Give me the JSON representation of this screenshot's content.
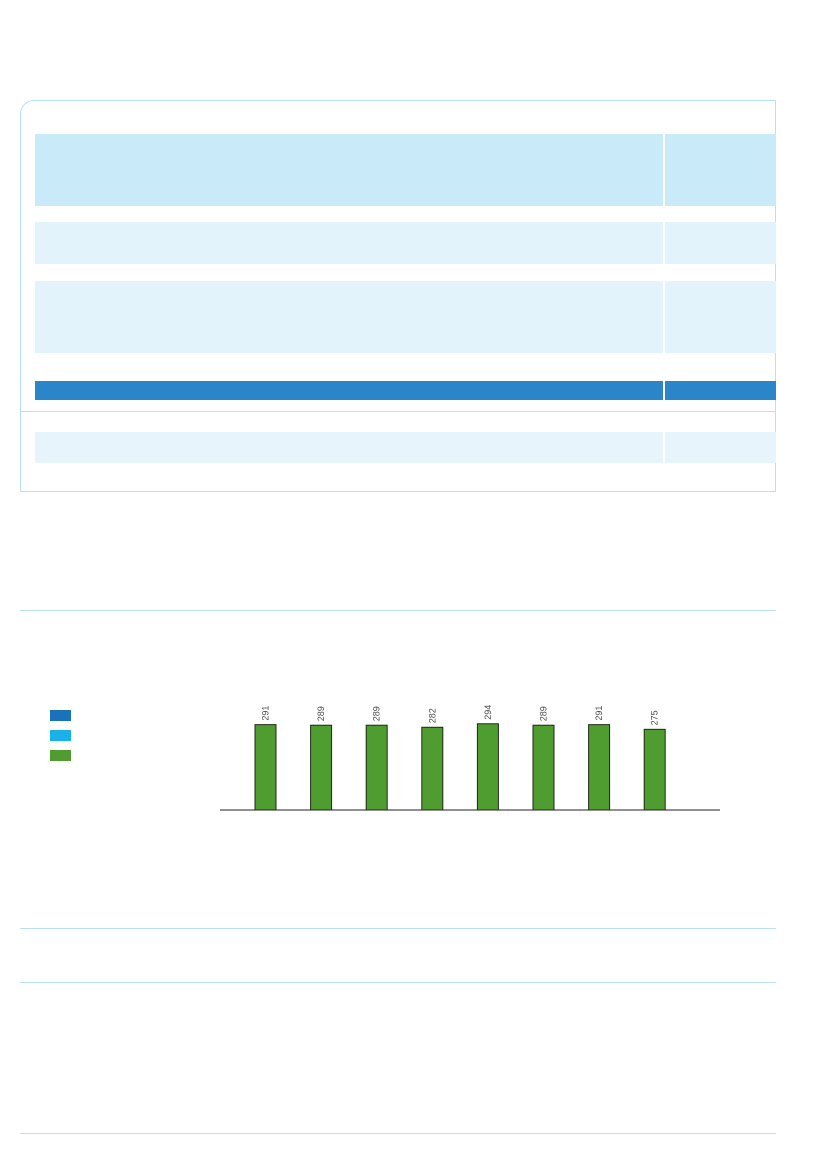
{
  "colors": {
    "panel_border": "#b9dff0",
    "band_strong": "#c8eaf9",
    "band_light": "#e3f3fc",
    "band_blue": "#2a86c8",
    "legend_dark_blue": "#1a72bb",
    "legend_light_blue": "#1cb0ea",
    "legend_green": "#4f9c31",
    "bar_fill": "#4f9c31"
  },
  "legend": {
    "items": [
      {
        "color": "#1a72bb"
      },
      {
        "color": "#1cb0ea"
      },
      {
        "color": "#4f9c31"
      }
    ]
  },
  "chart_data": {
    "type": "bar",
    "categories": [
      "",
      "",
      "",
      "",
      "",
      "",
      "",
      ""
    ],
    "series": [
      {
        "values": [
          291,
          289,
          289,
          282,
          294,
          289,
          291,
          275
        ]
      }
    ],
    "data_labels": [
      "291",
      "289",
      "289",
      "282",
      "294",
      "289",
      "291",
      "275"
    ],
    "ylim": [
      0,
      300
    ],
    "grid": false,
    "legend_position": "left"
  }
}
